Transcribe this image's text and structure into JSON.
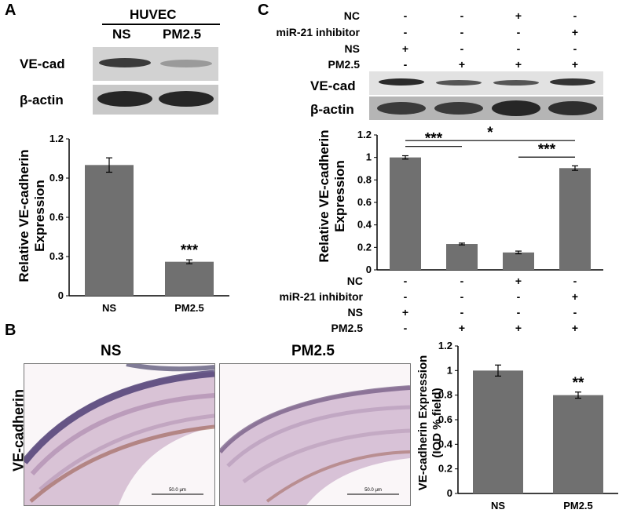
{
  "panel_a": {
    "letter": "A",
    "cell_line": "HUVEC",
    "lanes": [
      "NS",
      "PM2.5"
    ],
    "rows": [
      "VE-cad",
      "β-actin"
    ]
  },
  "panel_b": {
    "letter": "B",
    "row_label": "VE-cadherin",
    "titles": [
      "NS",
      "PM2.5"
    ],
    "scale_bar": "50.0 μm"
  },
  "panel_c": {
    "letter": "C",
    "rows": [
      "NC",
      "miR-21 inhibitor",
      "NS",
      "PM2.5"
    ],
    "matrix": [
      [
        "-",
        "-",
        "+",
        "-"
      ],
      [
        "-",
        "-",
        "-",
        "+"
      ],
      [
        "+",
        "-",
        "-",
        "-"
      ],
      [
        "-",
        "+",
        "+",
        "+"
      ]
    ],
    "blot_rows": [
      "VE-cad",
      "β-actin"
    ]
  },
  "significance": {
    "a": "***",
    "b": "**",
    "c_ns_pm": "***",
    "c_pm_inh": "*",
    "c_nc_inh": "***"
  },
  "chart_data": [
    {
      "id": "A",
      "type": "bar",
      "categories": [
        "NS",
        "PM2.5"
      ],
      "values": [
        1.0,
        0.26
      ],
      "errors": [
        0.055,
        0.015
      ],
      "ylabel": "Relative VE-cadherin Expression",
      "ylim": [
        0,
        1.2
      ],
      "yticks": [
        "0",
        "0.3",
        "0.6",
        "0.9",
        "1.2"
      ],
      "color": "#707070"
    },
    {
      "id": "B",
      "type": "bar",
      "categories": [
        "NS",
        "PM2.5"
      ],
      "values": [
        1.0,
        0.8
      ],
      "errors": [
        0.045,
        0.025
      ],
      "ylabel": "VE-cadherin Expression (IOD % field)",
      "ylim": [
        0,
        1.2
      ],
      "yticks": [
        "0",
        "0.2",
        "0.4",
        "0.6",
        "0.8",
        "1",
        "1.2"
      ],
      "color": "#707070"
    },
    {
      "id": "C",
      "type": "bar",
      "categories": [
        "NS",
        "PM2.5",
        "PM2.5 + NC",
        "PM2.5 + miR-21 inhibitor"
      ],
      "values": [
        1.0,
        0.23,
        0.155,
        0.905
      ],
      "errors": [
        0.015,
        0.008,
        0.012,
        0.02
      ],
      "ylabel": "Relative VE-cadherin Expression",
      "ylim": [
        0,
        1.2
      ],
      "yticks": [
        "0",
        "0.2",
        "0.4",
        "0.6",
        "0.8",
        "1",
        "1.2"
      ],
      "color": "#707070"
    }
  ]
}
